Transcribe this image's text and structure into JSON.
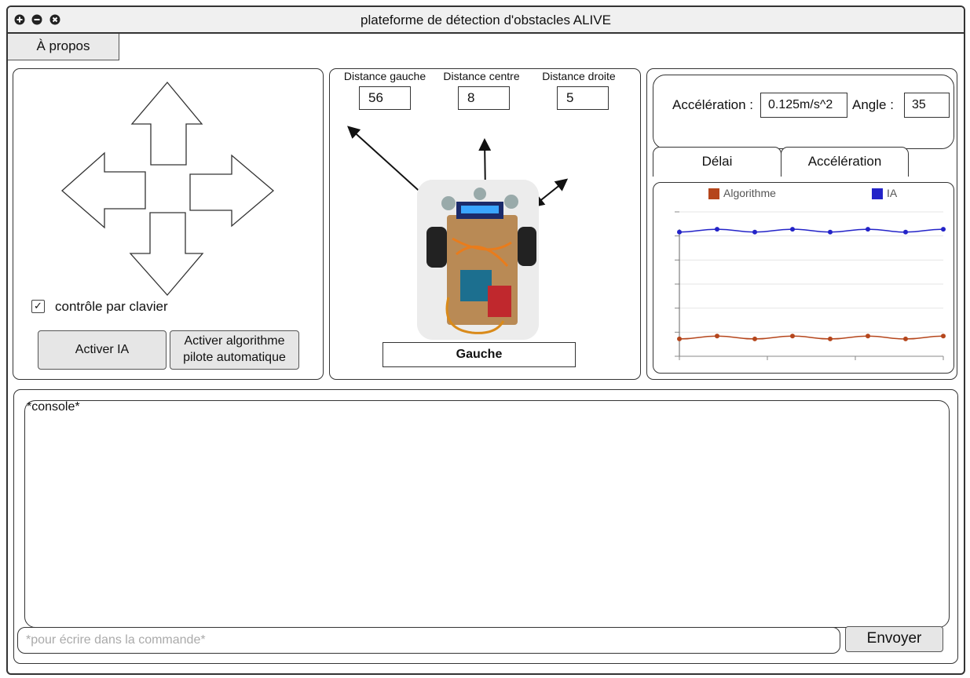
{
  "window": {
    "title": "plateforme de détection d'obstacles ALIVE"
  },
  "menu": {
    "about_tab": "À propos"
  },
  "controls": {
    "keyboard_label": "contrôle par clavier",
    "keyboard_checked_glyph": "✓",
    "activate_ai": "Activer IA",
    "activate_autopilot_line1": "Activer algorithme",
    "activate_autopilot_line2": "pilote automatique"
  },
  "sensors": {
    "left_label": "Distance gauche",
    "left_value": "56",
    "center_label": "Distance centre",
    "center_value": "8",
    "right_label": "Distance droite",
    "right_value": "5",
    "direction": "Gauche"
  },
  "telemetry": {
    "acceleration_label": "Accélération :",
    "acceleration_value": "0.125m/s^2",
    "angle_label": "Angle :",
    "angle_value": "35"
  },
  "tabs": [
    {
      "label": "Délai"
    },
    {
      "label": "Accélération"
    }
  ],
  "colors": {
    "algorithm": "#b5461c",
    "ai": "#2323c8"
  },
  "chart_data": {
    "type": "line",
    "title": "",
    "xlabel": "",
    "ylabel": "",
    "legend_position": "top",
    "grid": true,
    "x": [
      0,
      1,
      2,
      3,
      4,
      5,
      6,
      7
    ],
    "ylim": [
      0,
      1
    ],
    "series": [
      {
        "name": "Algorithme",
        "color": "#b5461c",
        "values": [
          0.12,
          0.14,
          0.12,
          0.14,
          0.12,
          0.14,
          0.12,
          0.14
        ]
      },
      {
        "name": "IA",
        "color": "#2323c8",
        "values": [
          0.86,
          0.88,
          0.86,
          0.88,
          0.86,
          0.88,
          0.86,
          0.88
        ]
      }
    ]
  },
  "console": {
    "label": "*console*",
    "command_placeholder": "*pour écrire dans la commande*",
    "send": "Envoyer"
  }
}
